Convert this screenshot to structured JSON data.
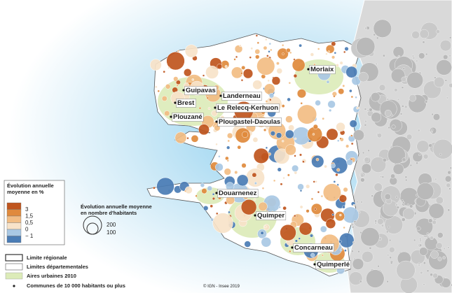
{
  "places": [
    "Morlaix",
    "Landerneau",
    "Guipavas",
    "Brest",
    "Le Relecq-Kerhuon",
    "Plouzané",
    "Plougastel-Daoulas",
    "Douarnenez",
    "Quimper",
    "Concarneau",
    "Quimperlé"
  ],
  "legend": {
    "color": {
      "title": "Évolution annuelle moyenne en %",
      "classes": [
        "3",
        "1,5",
        "0,5",
        "0",
        "− 1"
      ]
    },
    "size": {
      "title": "Évolution annuelle moyenne en nombre d'habitants",
      "values": [
        "200",
        "100"
      ]
    },
    "layers": [
      "Limite régionale",
      "Limites départementales",
      "Aires urbaines 2010",
      "Communes de 10 000 habitants ou plus"
    ]
  },
  "credit": "© IGN - Insee 2019"
}
